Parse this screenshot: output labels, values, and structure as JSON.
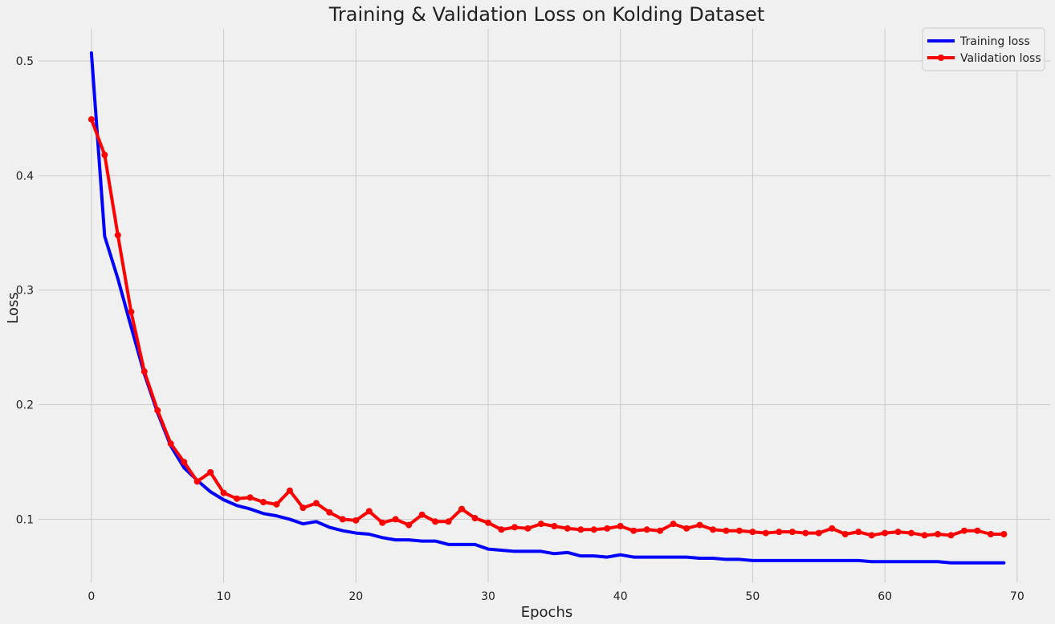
{
  "chart_data": {
    "type": "line",
    "title": "Training & Validation Loss on Kolding Dataset",
    "xlabel": "Epochs",
    "ylabel": "Loss",
    "xlim": [
      -4,
      72.5
    ],
    "ylim": [
      0.045,
      0.528
    ],
    "xticks": [
      0,
      10,
      20,
      30,
      40,
      50,
      60,
      70
    ],
    "yticks": [
      0.1,
      0.2,
      0.3,
      0.4,
      0.5
    ],
    "ytick_labels": [
      "0.1",
      "0.2",
      "0.3",
      "0.4",
      "0.5"
    ],
    "grid": true,
    "legend_position": "top-right",
    "x": [
      0,
      1,
      2,
      3,
      4,
      5,
      6,
      7,
      8,
      9,
      10,
      11,
      12,
      13,
      14,
      15,
      16,
      17,
      18,
      19,
      20,
      21,
      22,
      23,
      24,
      25,
      26,
      27,
      28,
      29,
      30,
      31,
      32,
      33,
      34,
      35,
      36,
      37,
      38,
      39,
      40,
      41,
      42,
      43,
      44,
      45,
      46,
      47,
      48,
      49,
      50,
      51,
      52,
      53,
      54,
      55,
      56,
      57,
      58,
      59,
      60,
      61,
      62,
      63,
      64,
      65,
      66,
      67,
      68,
      69
    ],
    "series": [
      {
        "name": "Training loss",
        "color": "#0000ff",
        "markers": false,
        "values": [
          0.507,
          0.347,
          0.31,
          0.268,
          0.227,
          0.193,
          0.164,
          0.145,
          0.134,
          0.124,
          0.117,
          0.112,
          0.109,
          0.105,
          0.103,
          0.1,
          0.096,
          0.098,
          0.093,
          0.09,
          0.088,
          0.087,
          0.084,
          0.082,
          0.082,
          0.081,
          0.081,
          0.078,
          0.078,
          0.078,
          0.074,
          0.073,
          0.072,
          0.072,
          0.072,
          0.07,
          0.071,
          0.068,
          0.068,
          0.067,
          0.069,
          0.067,
          0.067,
          0.067,
          0.067,
          0.067,
          0.066,
          0.066,
          0.065,
          0.065,
          0.064,
          0.064,
          0.064,
          0.064,
          0.064,
          0.064,
          0.064,
          0.064,
          0.064,
          0.063,
          0.063,
          0.063,
          0.063,
          0.063,
          0.063,
          0.062,
          0.062,
          0.062,
          0.062,
          0.062
        ]
      },
      {
        "name": "Validation loss",
        "color": "#ff0000",
        "markers": true,
        "values": [
          0.449,
          0.418,
          0.348,
          0.281,
          0.229,
          0.195,
          0.166,
          0.15,
          0.133,
          0.141,
          0.123,
          0.118,
          0.119,
          0.115,
          0.113,
          0.125,
          0.11,
          0.114,
          0.106,
          0.1,
          0.099,
          0.107,
          0.097,
          0.1,
          0.095,
          0.104,
          0.098,
          0.098,
          0.109,
          0.101,
          0.097,
          0.091,
          0.093,
          0.092,
          0.096,
          0.094,
          0.092,
          0.091,
          0.091,
          0.092,
          0.094,
          0.09,
          0.091,
          0.09,
          0.096,
          0.092,
          0.095,
          0.091,
          0.09,
          0.09,
          0.089,
          0.088,
          0.089,
          0.089,
          0.088,
          0.088,
          0.092,
          0.087,
          0.089,
          0.086,
          0.088,
          0.089,
          0.088,
          0.086,
          0.087,
          0.086,
          0.09,
          0.09,
          0.087,
          0.087
        ]
      }
    ]
  }
}
